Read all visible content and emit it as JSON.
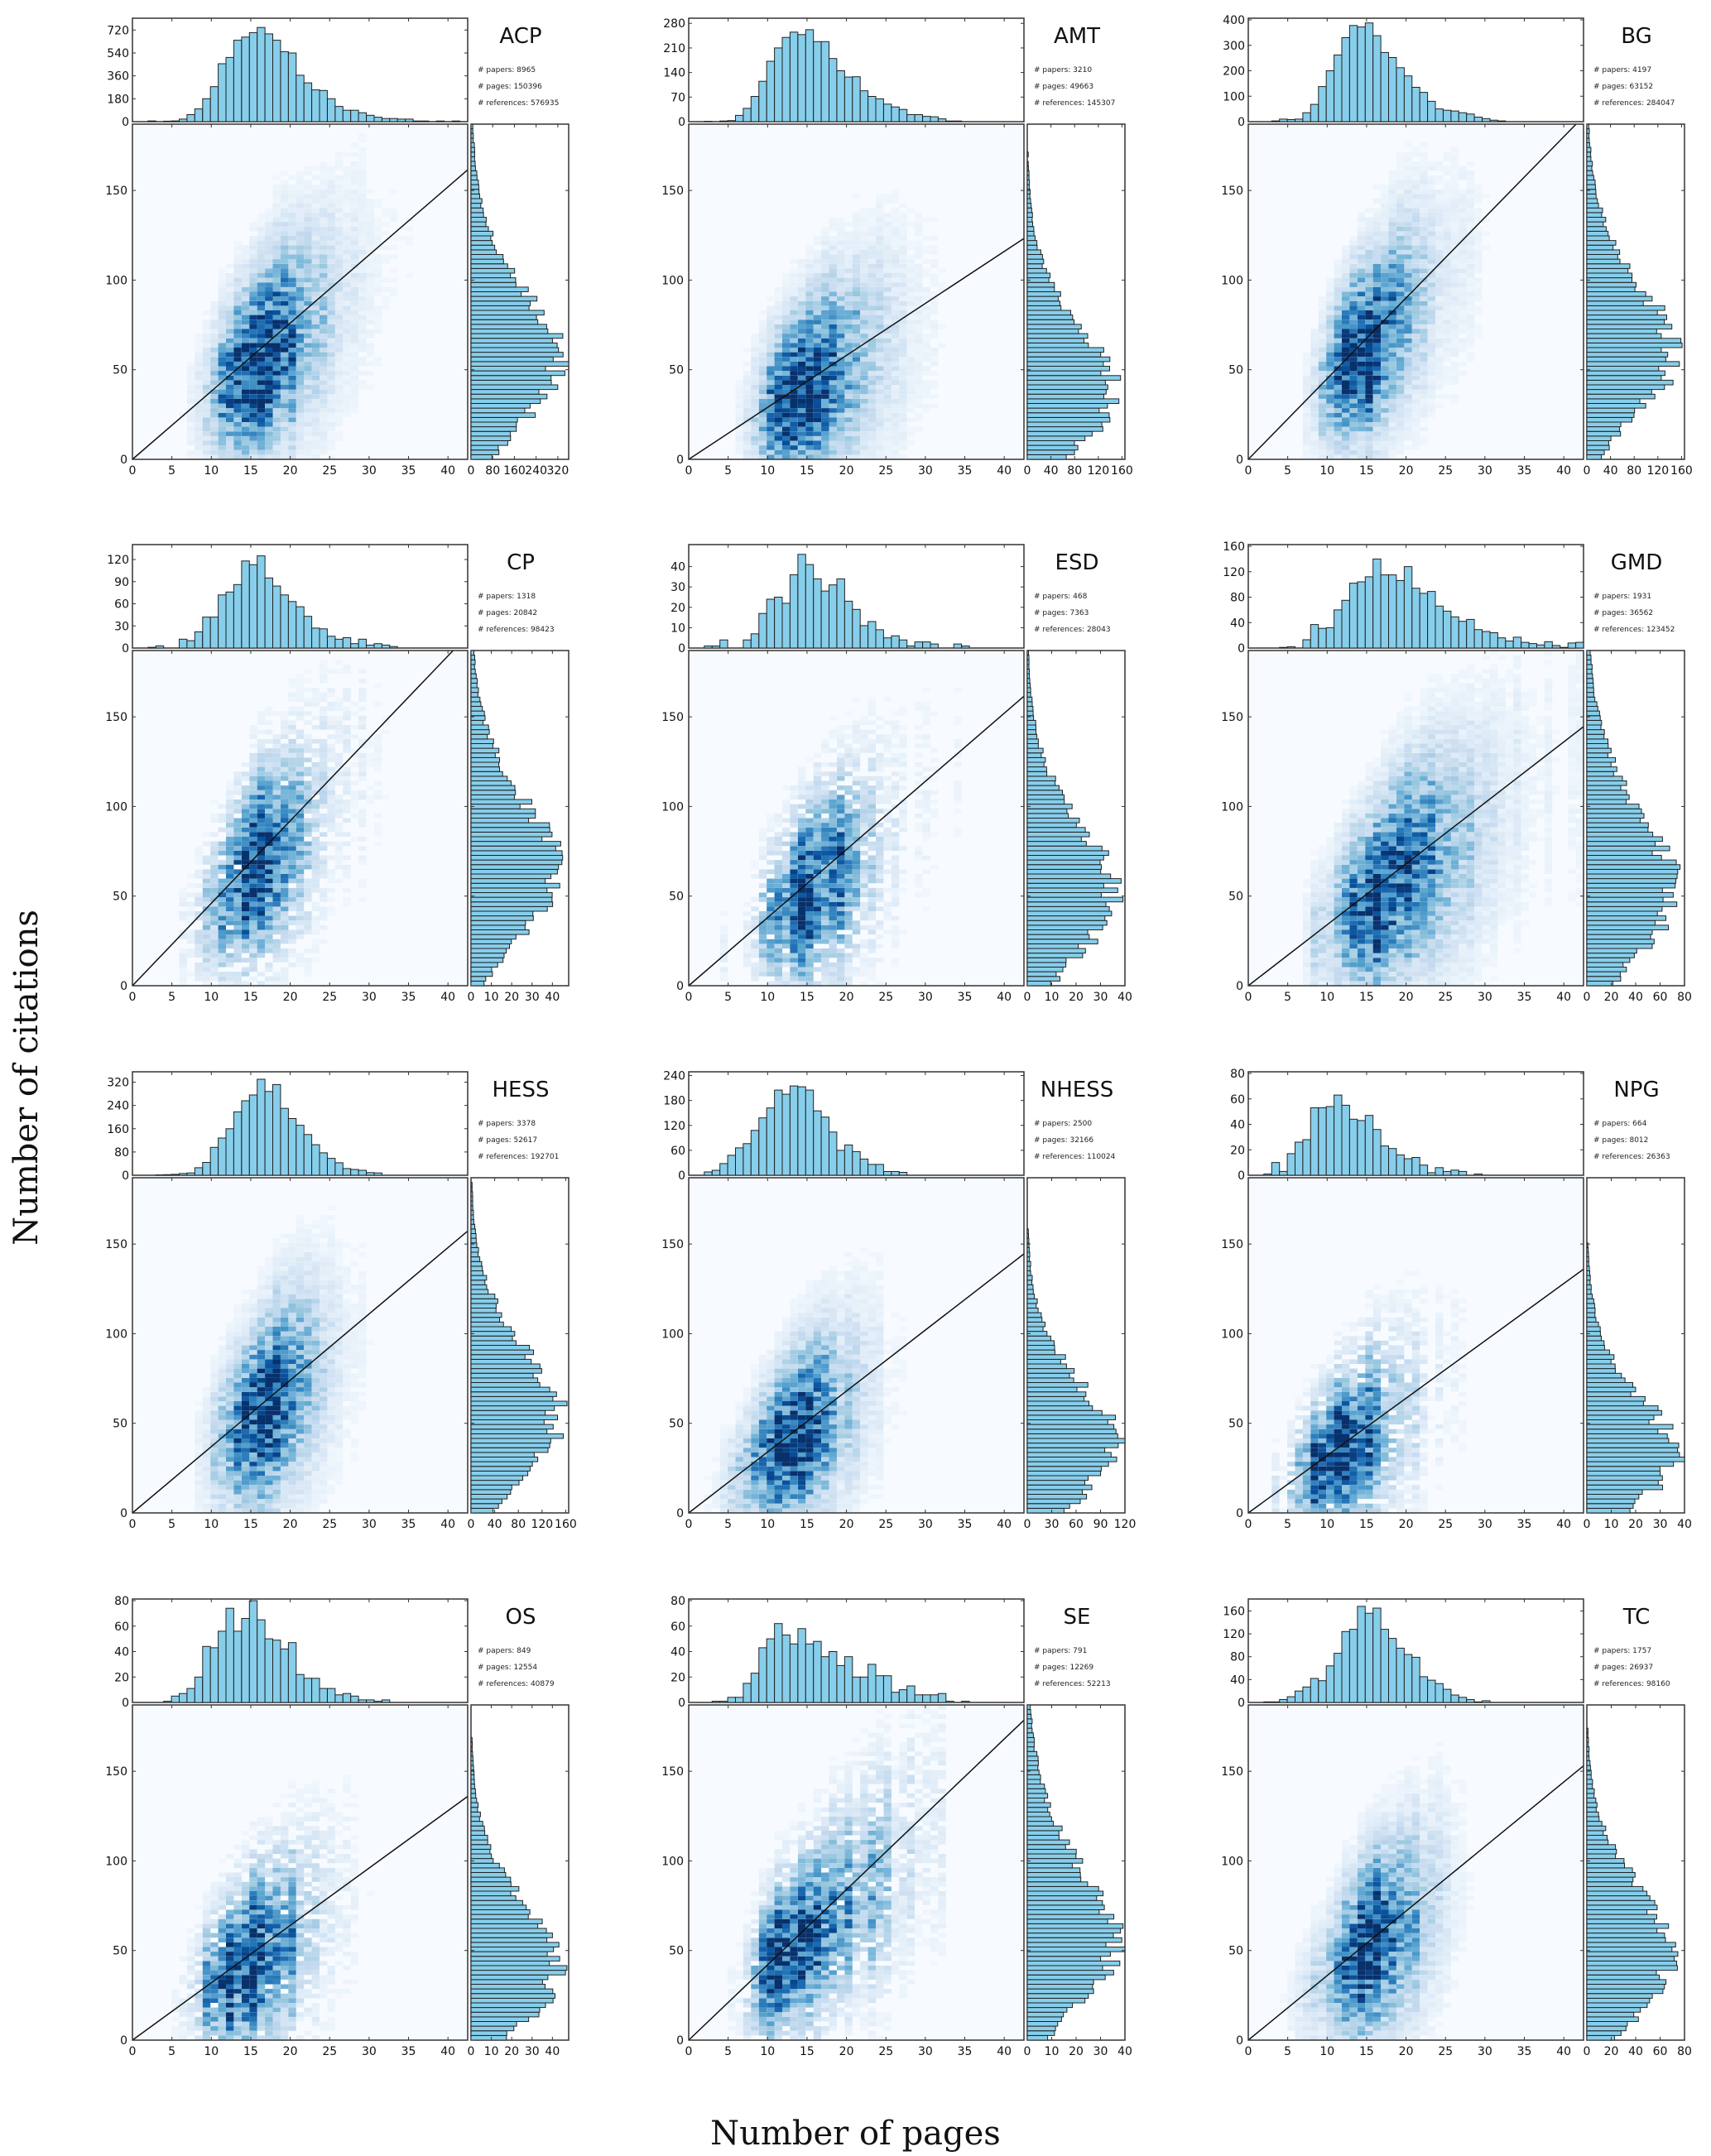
{
  "figure": {
    "ylabel": "Number of citations",
    "xlabel": "Number of pages"
  },
  "chart_data": [
    {
      "type": "heatmap",
      "title": "ACP",
      "stats": [
        "# papers: 8965",
        "# pages: 150396",
        "# references: 576935"
      ],
      "main": {
        "xlim": [
          0,
          42.5
        ],
        "ylim": [
          0,
          187
        ],
        "xticks": [
          "0",
          "5",
          "10",
          "15",
          "20",
          "25",
          "30",
          "35",
          "40"
        ],
        "yticks": [
          "0",
          "50",
          "100",
          "150"
        ],
        "fit_slope": 3.8
      },
      "top_hist": {
        "yticks": [
          "0",
          "180",
          "360",
          "540",
          "720"
        ],
        "ymax": 800,
        "values": [
          0,
          0,
          6,
          0,
          4,
          6,
          20,
          55,
          100,
          180,
          275,
          455,
          505,
          640,
          665,
          700,
          740,
          690,
          640,
          550,
          540,
          365,
          305,
          250,
          245,
          180,
          120,
          90,
          90,
          70,
          50,
          35,
          25,
          25,
          20,
          20,
          5,
          5,
          0,
          5,
          0,
          5
        ]
      },
      "right_hist": {
        "xticks": [
          "0",
          "80",
          "160",
          "240",
          "320"
        ],
        "xmax": 360
      }
    },
    {
      "type": "heatmap",
      "title": "AMT",
      "stats": [
        "# papers: 3210",
        "# pages: 49663",
        "# references: 145307"
      ],
      "main": {
        "xlim": [
          0,
          42.5
        ],
        "ylim": [
          0,
          187
        ],
        "xticks": [
          "0",
          "5",
          "10",
          "15",
          "20",
          "25",
          "30",
          "35",
          "40"
        ],
        "yticks": [
          "0",
          "50",
          "100",
          "150"
        ],
        "fit_slope": 2.9
      },
      "top_hist": {
        "yticks": [
          "0",
          "70",
          "140",
          "210",
          "280"
        ],
        "ymax": 290,
        "values": [
          0,
          0,
          1,
          0,
          2,
          3,
          18,
          38,
          72,
          115,
          172,
          210,
          240,
          255,
          248,
          262,
          228,
          228,
          180,
          145,
          127,
          128,
          88,
          72,
          65,
          50,
          42,
          35,
          20,
          20,
          15,
          14,
          8,
          2,
          2,
          0,
          0,
          0,
          0,
          0,
          0,
          0
        ]
      },
      "right_hist": {
        "xticks": [
          "0",
          "40",
          "80",
          "120",
          "160"
        ],
        "xmax": 165
      }
    },
    {
      "type": "heatmap",
      "title": "BG",
      "stats": [
        "# papers: 4197",
        "# pages: 63152",
        "# references: 284047"
      ],
      "main": {
        "xlim": [
          0,
          42.5
        ],
        "ylim": [
          0,
          187
        ],
        "xticks": [
          "0",
          "5",
          "10",
          "15",
          "20",
          "25",
          "30",
          "35",
          "40"
        ],
        "yticks": [
          "0",
          "50",
          "100",
          "150"
        ],
        "fit_slope": 4.5
      },
      "top_hist": {
        "yticks": [
          "0",
          "100",
          "200",
          "300",
          "400"
        ],
        "ymax": 400,
        "values": [
          0,
          0,
          0,
          3,
          10,
          8,
          10,
          35,
          68,
          138,
          200,
          262,
          330,
          378,
          372,
          388,
          338,
          272,
          252,
          212,
          180,
          135,
          115,
          80,
          50,
          45,
          42,
          35,
          30,
          18,
          12,
          6,
          3,
          0,
          0,
          0,
          0,
          0,
          0,
          0,
          0,
          0
        ]
      },
      "right_hist": {
        "xticks": [
          "0",
          "40",
          "80",
          "120",
          "160"
        ],
        "xmax": 165
      }
    },
    {
      "type": "heatmap",
      "title": "CP",
      "stats": [
        "# papers: 1318",
        "# pages: 20842",
        "# references: 98423"
      ],
      "main": {
        "xlim": [
          0,
          42.5
        ],
        "ylim": [
          0,
          187
        ],
        "xticks": [
          "0",
          "5",
          "10",
          "15",
          "20",
          "25",
          "30",
          "35",
          "40"
        ],
        "yticks": [
          "0",
          "50",
          "100",
          "150"
        ],
        "fit_slope": 4.6
      },
      "top_hist": {
        "yticks": [
          "0",
          "30",
          "60",
          "90",
          "120"
        ],
        "ymax": 138,
        "values": [
          0,
          0,
          1,
          3,
          0,
          0,
          12,
          10,
          22,
          42,
          42,
          72,
          76,
          86,
          118,
          113,
          125,
          95,
          84,
          72,
          63,
          56,
          43,
          27,
          26,
          16,
          12,
          14,
          6,
          12,
          4,
          6,
          4,
          2,
          0,
          0,
          0,
          0,
          0,
          0,
          0,
          0
        ]
      },
      "right_hist": {
        "xticks": [
          "0",
          "10",
          "20",
          "30",
          "40"
        ],
        "xmax": 48
      }
    },
    {
      "type": "heatmap",
      "title": "ESD",
      "stats": [
        "# papers: 468",
        "# pages: 7363",
        "# references: 28043"
      ],
      "main": {
        "xlim": [
          0,
          42.5
        ],
        "ylim": [
          0,
          187
        ],
        "xticks": [
          "0",
          "5",
          "10",
          "15",
          "20",
          "25",
          "30",
          "35",
          "40"
        ],
        "yticks": [
          "0",
          "50",
          "100",
          "150"
        ],
        "fit_slope": 3.8
      },
      "top_hist": {
        "yticks": [
          "0",
          "10",
          "20",
          "30",
          "40"
        ],
        "ymax": 50,
        "values": [
          0,
          0,
          1,
          1,
          4,
          0,
          0,
          4,
          7,
          17,
          24,
          25,
          22,
          36,
          46,
          41,
          34,
          28,
          31,
          34,
          23,
          19,
          11,
          13,
          9,
          5,
          6,
          4,
          1,
          3,
          3,
          2,
          0,
          0,
          2,
          1,
          0,
          0,
          0,
          0,
          0,
          0
        ]
      },
      "right_hist": {
        "xticks": [
          "0",
          "10",
          "20",
          "30",
          "40"
        ],
        "xmax": 40
      }
    },
    {
      "type": "heatmap",
      "title": "GMD",
      "stats": [
        "# papers: 1931",
        "# pages: 36562",
        "# references: 123452"
      ],
      "main": {
        "xlim": [
          0,
          42.5
        ],
        "ylim": [
          0,
          187
        ],
        "xticks": [
          "0",
          "5",
          "10",
          "15",
          "20",
          "25",
          "30",
          "35",
          "40"
        ],
        "yticks": [
          "0",
          "50",
          "100",
          "150"
        ],
        "fit_slope": 3.4
      },
      "top_hist": {
        "yticks": [
          "0",
          "40",
          "80",
          "120",
          "160"
        ],
        "ymax": 160,
        "values": [
          0,
          0,
          0,
          0,
          1,
          2,
          0,
          13,
          37,
          31,
          32,
          60,
          75,
          102,
          104,
          112,
          140,
          115,
          115,
          106,
          128,
          94,
          86,
          89,
          66,
          58,
          49,
          42,
          45,
          29,
          26,
          24,
          16,
          11,
          17,
          9,
          7,
          5,
          10,
          4,
          1,
          8,
          9
        ]
      },
      "right_hist": {
        "xticks": [
          "0",
          "20",
          "40",
          "60",
          "80"
        ],
        "xmax": 80
      }
    },
    {
      "type": "heatmap",
      "title": "HESS",
      "stats": [
        "# papers: 3378",
        "# pages: 52617",
        "# references: 192701"
      ],
      "main": {
        "xlim": [
          0,
          42.5
        ],
        "ylim": [
          0,
          187
        ],
        "xticks": [
          "0",
          "5",
          "10",
          "15",
          "20",
          "25",
          "30",
          "35",
          "40"
        ],
        "yticks": [
          "0",
          "50",
          "100",
          "150"
        ],
        "fit_slope": 3.7
      },
      "top_hist": {
        "yticks": [
          "0",
          "80",
          "160",
          "240",
          "320"
        ],
        "ymax": 350,
        "values": [
          0,
          0,
          0,
          1,
          2,
          3,
          6,
          8,
          26,
          44,
          96,
          128,
          160,
          218,
          256,
          276,
          330,
          288,
          312,
          230,
          195,
          172,
          140,
          105,
          77,
          58,
          43,
          23,
          20,
          17,
          9,
          8,
          0,
          0,
          0,
          0,
          0,
          0,
          0,
          0,
          0,
          0
        ]
      },
      "right_hist": {
        "xticks": [
          "0",
          "40",
          "80",
          "120",
          "160"
        ],
        "xmax": 165
      }
    },
    {
      "type": "heatmap",
      "title": "NHESS",
      "stats": [
        "# papers: 2500",
        "# pages: 32166",
        "# references: 110024"
      ],
      "main": {
        "xlim": [
          0,
          42.5
        ],
        "ylim": [
          0,
          187
        ],
        "xticks": [
          "0",
          "5",
          "10",
          "15",
          "20",
          "25",
          "30",
          "35",
          "40"
        ],
        "yticks": [
          "0",
          "50",
          "100",
          "150"
        ],
        "fit_slope": 3.4
      },
      "top_hist": {
        "yticks": [
          "0",
          "60",
          "120",
          "180",
          "240"
        ],
        "ymax": 245,
        "values": [
          0,
          0,
          8,
          12,
          28,
          48,
          66,
          76,
          108,
          138,
          162,
          205,
          195,
          215,
          213,
          205,
          155,
          140,
          104,
          60,
          73,
          57,
          39,
          26,
          26,
          9,
          9,
          7,
          0,
          0,
          0,
          0,
          0,
          0,
          0,
          0,
          0,
          0,
          0,
          0,
          0,
          0
        ]
      },
      "right_hist": {
        "xticks": [
          "0",
          "30",
          "60",
          "90",
          "120"
        ],
        "xmax": 120
      }
    },
    {
      "type": "heatmap",
      "title": "NPG",
      "stats": [
        "# papers: 664",
        "# pages: 8012",
        "# references: 26363"
      ],
      "main": {
        "xlim": [
          0,
          42.5
        ],
        "ylim": [
          0,
          187
        ],
        "xticks": [
          "0",
          "5",
          "10",
          "15",
          "20",
          "25",
          "30",
          "35",
          "40"
        ],
        "yticks": [
          "0",
          "50",
          "100",
          "150"
        ],
        "fit_slope": 3.2
      },
      "top_hist": {
        "yticks": [
          "0",
          "20",
          "40",
          "60",
          "80"
        ],
        "ymax": 80,
        "values": [
          0,
          0,
          1,
          10,
          3,
          17,
          26,
          28,
          53,
          53,
          54,
          63,
          55,
          44,
          43,
          47,
          36,
          23,
          21,
          16,
          13,
          14,
          8,
          2,
          6,
          3,
          4,
          3,
          0,
          1,
          0,
          0,
          0,
          0,
          0,
          0,
          0,
          0,
          0,
          0,
          0,
          0
        ]
      },
      "right_hist": {
        "xticks": [
          "0",
          "10",
          "20",
          "30",
          "40"
        ],
        "xmax": 40
      }
    },
    {
      "type": "heatmap",
      "title": "OS",
      "stats": [
        "# papers: 849",
        "# pages: 12554",
        "# references: 40879"
      ],
      "main": {
        "xlim": [
          0,
          42.5
        ],
        "ylim": [
          0,
          187
        ],
        "xticks": [
          "0",
          "5",
          "10",
          "15",
          "20",
          "25",
          "30",
          "35",
          "40"
        ],
        "yticks": [
          "0",
          "50",
          "100",
          "150"
        ],
        "fit_slope": 3.2
      },
      "top_hist": {
        "yticks": [
          "0",
          "20",
          "40",
          "60",
          "80"
        ],
        "ymax": 80,
        "values": [
          0,
          0,
          0,
          0,
          1,
          5,
          7,
          11,
          20,
          44,
          43,
          56,
          74,
          56,
          66,
          80,
          65,
          50,
          49,
          42,
          47,
          22,
          19,
          19,
          11,
          11,
          6,
          7,
          5,
          2,
          2,
          1,
          2,
          0,
          0,
          0,
          0,
          0,
          0,
          0,
          0,
          0
        ]
      },
      "right_hist": {
        "xticks": [
          "0",
          "10",
          "20",
          "30",
          "40"
        ],
        "xmax": 48
      }
    },
    {
      "type": "heatmap",
      "title": "SE",
      "stats": [
        "# papers: 791",
        "# pages: 12269",
        "# references: 52213"
      ],
      "main": {
        "xlim": [
          0,
          42.5
        ],
        "ylim": [
          0,
          187
        ],
        "xticks": [
          "0",
          "5",
          "10",
          "15",
          "20",
          "25",
          "30",
          "35",
          "40"
        ],
        "yticks": [
          "0",
          "50",
          "100",
          "150"
        ],
        "fit_slope": 4.2
      },
      "top_hist": {
        "yticks": [
          "0",
          "20",
          "40",
          "60",
          "80"
        ],
        "ymax": 80,
        "values": [
          0,
          0,
          0,
          1,
          1,
          4,
          4,
          15,
          23,
          43,
          50,
          62,
          53,
          46,
          58,
          46,
          48,
          36,
          40,
          29,
          36,
          20,
          20,
          30,
          21,
          21,
          8,
          10,
          13,
          6,
          6,
          6,
          7,
          1,
          0,
          1,
          0,
          0,
          0,
          0,
          0,
          0
        ]
      },
      "right_hist": {
        "xticks": [
          "0",
          "10",
          "20",
          "30",
          "40"
        ],
        "xmax": 40
      }
    },
    {
      "type": "heatmap",
      "title": "TC",
      "stats": [
        "# papers: 1757",
        "# pages: 26937",
        "# references: 98160"
      ],
      "main": {
        "xlim": [
          0,
          42.5
        ],
        "ylim": [
          0,
          187
        ],
        "xticks": [
          "0",
          "5",
          "10",
          "15",
          "20",
          "25",
          "30",
          "35",
          "40"
        ],
        "yticks": [
          "0",
          "50",
          "100",
          "150"
        ],
        "fit_slope": 3.6
      },
      "top_hist": {
        "yticks": [
          "0",
          "40",
          "80",
          "120",
          "160"
        ],
        "ymax": 178,
        "values": [
          0,
          0,
          1,
          1,
          5,
          10,
          20,
          27,
          42,
          38,
          64,
          86,
          124,
          128,
          168,
          156,
          165,
          128,
          112,
          95,
          84,
          79,
          45,
          39,
          33,
          23,
          13,
          9,
          5,
          1,
          3,
          0,
          0,
          0,
          0,
          0,
          0,
          0,
          0,
          0,
          0,
          0
        ]
      },
      "right_hist": {
        "xticks": [
          "0",
          "20",
          "40",
          "60",
          "80"
        ],
        "xmax": 80
      }
    }
  ]
}
